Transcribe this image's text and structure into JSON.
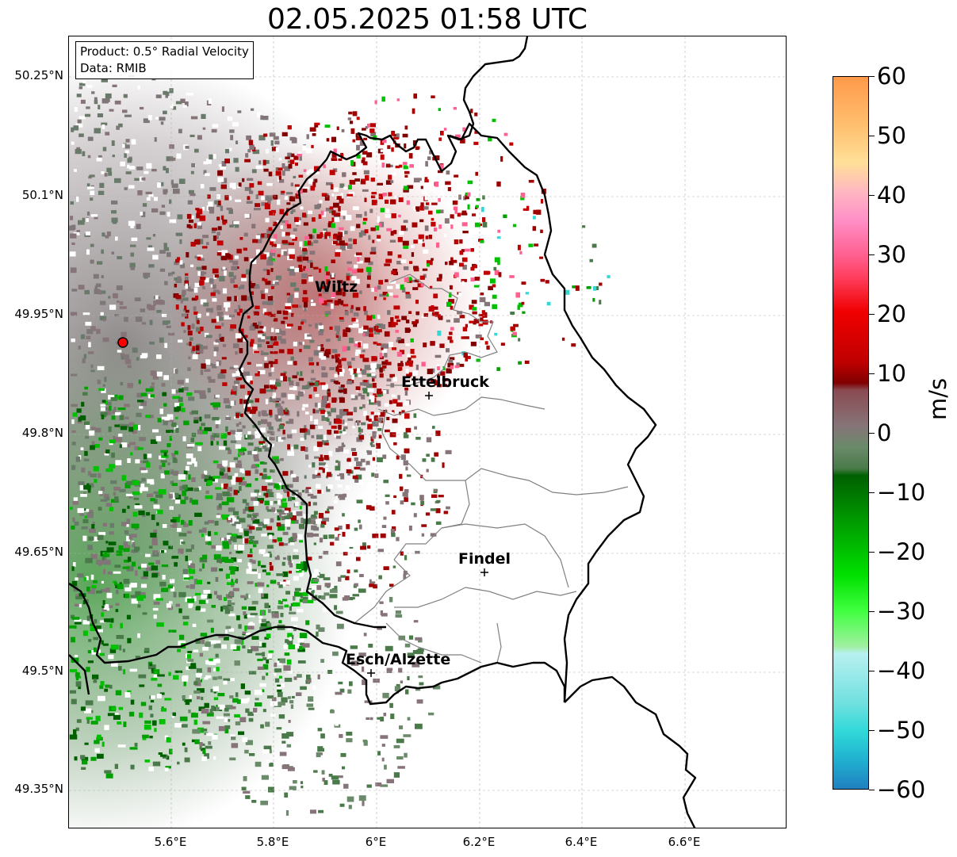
{
  "title": "02.05.2025 01:58 UTC",
  "info_box": {
    "product": "Product: 0.5° Radial Velocity",
    "data_source": "Data: RMIB"
  },
  "axes": {
    "lat_ticks": [
      "50.25°N",
      "50.1°N",
      "49.95°N",
      "49.8°N",
      "49.65°N",
      "49.5°N",
      "49.35°N"
    ],
    "lon_ticks": [
      "5.6°E",
      "5.8°E",
      "6°E",
      "6.2°E",
      "6.4°E",
      "6.6°E"
    ],
    "grid": true
  },
  "colorbar": {
    "unit": "m/s",
    "min": -60,
    "max": 60,
    "tick_labels": [
      "60",
      "50",
      "40",
      "30",
      "20",
      "10",
      "0",
      "−10",
      "−20",
      "−30",
      "−40",
      "−50",
      "−60"
    ]
  },
  "cities": [
    {
      "name": "Wiltz"
    },
    {
      "name": "Ettelbruck"
    },
    {
      "name": "Findel"
    },
    {
      "name": "Esch/Alzette"
    }
  ],
  "radar_site": {
    "color": "#ff0000"
  },
  "colors": {
    "outbound_red": "#a00000",
    "inbound_green": "#00a000",
    "near_zero_grey": "#7a7474",
    "border": "#000000",
    "canton_lines": "#808080"
  }
}
